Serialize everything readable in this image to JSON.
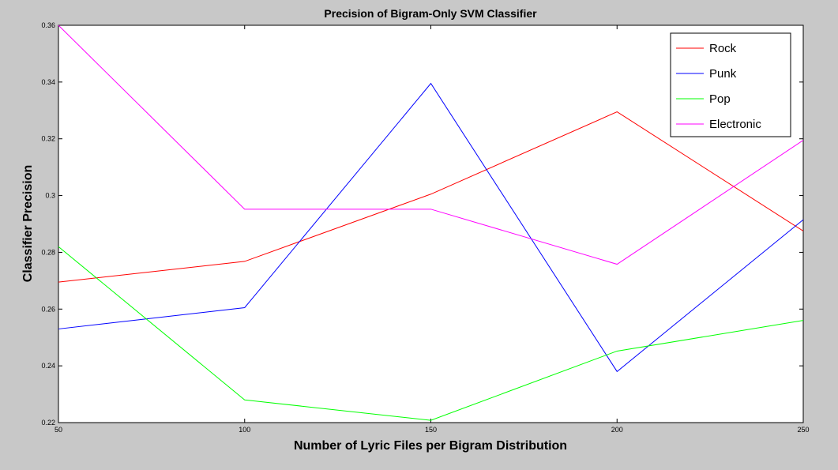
{
  "chart_data": {
    "type": "line",
    "title": "Precision of Bigram-Only SVM Classifier",
    "xlabel": "Number of Lyric Files per Bigram Distribution",
    "ylabel": "Classifier Precision",
    "x": [
      50,
      100,
      150,
      200,
      250
    ],
    "xlim": [
      50,
      250
    ],
    "ylim": [
      0.22,
      0.36
    ],
    "xticks": [
      50,
      100,
      150,
      200,
      250
    ],
    "xtick_labels": [
      "50",
      "100",
      "150",
      "200",
      "250"
    ],
    "yticks": [
      0.22,
      0.24,
      0.26,
      0.28,
      0.3,
      0.32,
      0.34,
      0.36
    ],
    "ytick_labels": [
      "0.22",
      "0.24",
      "0.26",
      "0.28",
      "0.3",
      "0.32",
      "0.34",
      "0.36"
    ],
    "grid": false,
    "legend_position": "top-right",
    "series": [
      {
        "name": "Rock",
        "color": "#ff0000",
        "values": [
          0.2695,
          0.2768,
          0.3005,
          0.3295,
          0.2875
        ]
      },
      {
        "name": "Punk",
        "color": "#0000ff",
        "values": [
          0.253,
          0.2605,
          0.3395,
          0.238,
          0.2915
        ]
      },
      {
        "name": "Pop",
        "color": "#00ff00",
        "values": [
          0.282,
          0.228,
          0.2208,
          0.2452,
          0.256
        ]
      },
      {
        "name": "Electronic",
        "color": "#ff00ff",
        "values": [
          0.36,
          0.2952,
          0.2952,
          0.2758,
          0.3195
        ]
      }
    ]
  }
}
